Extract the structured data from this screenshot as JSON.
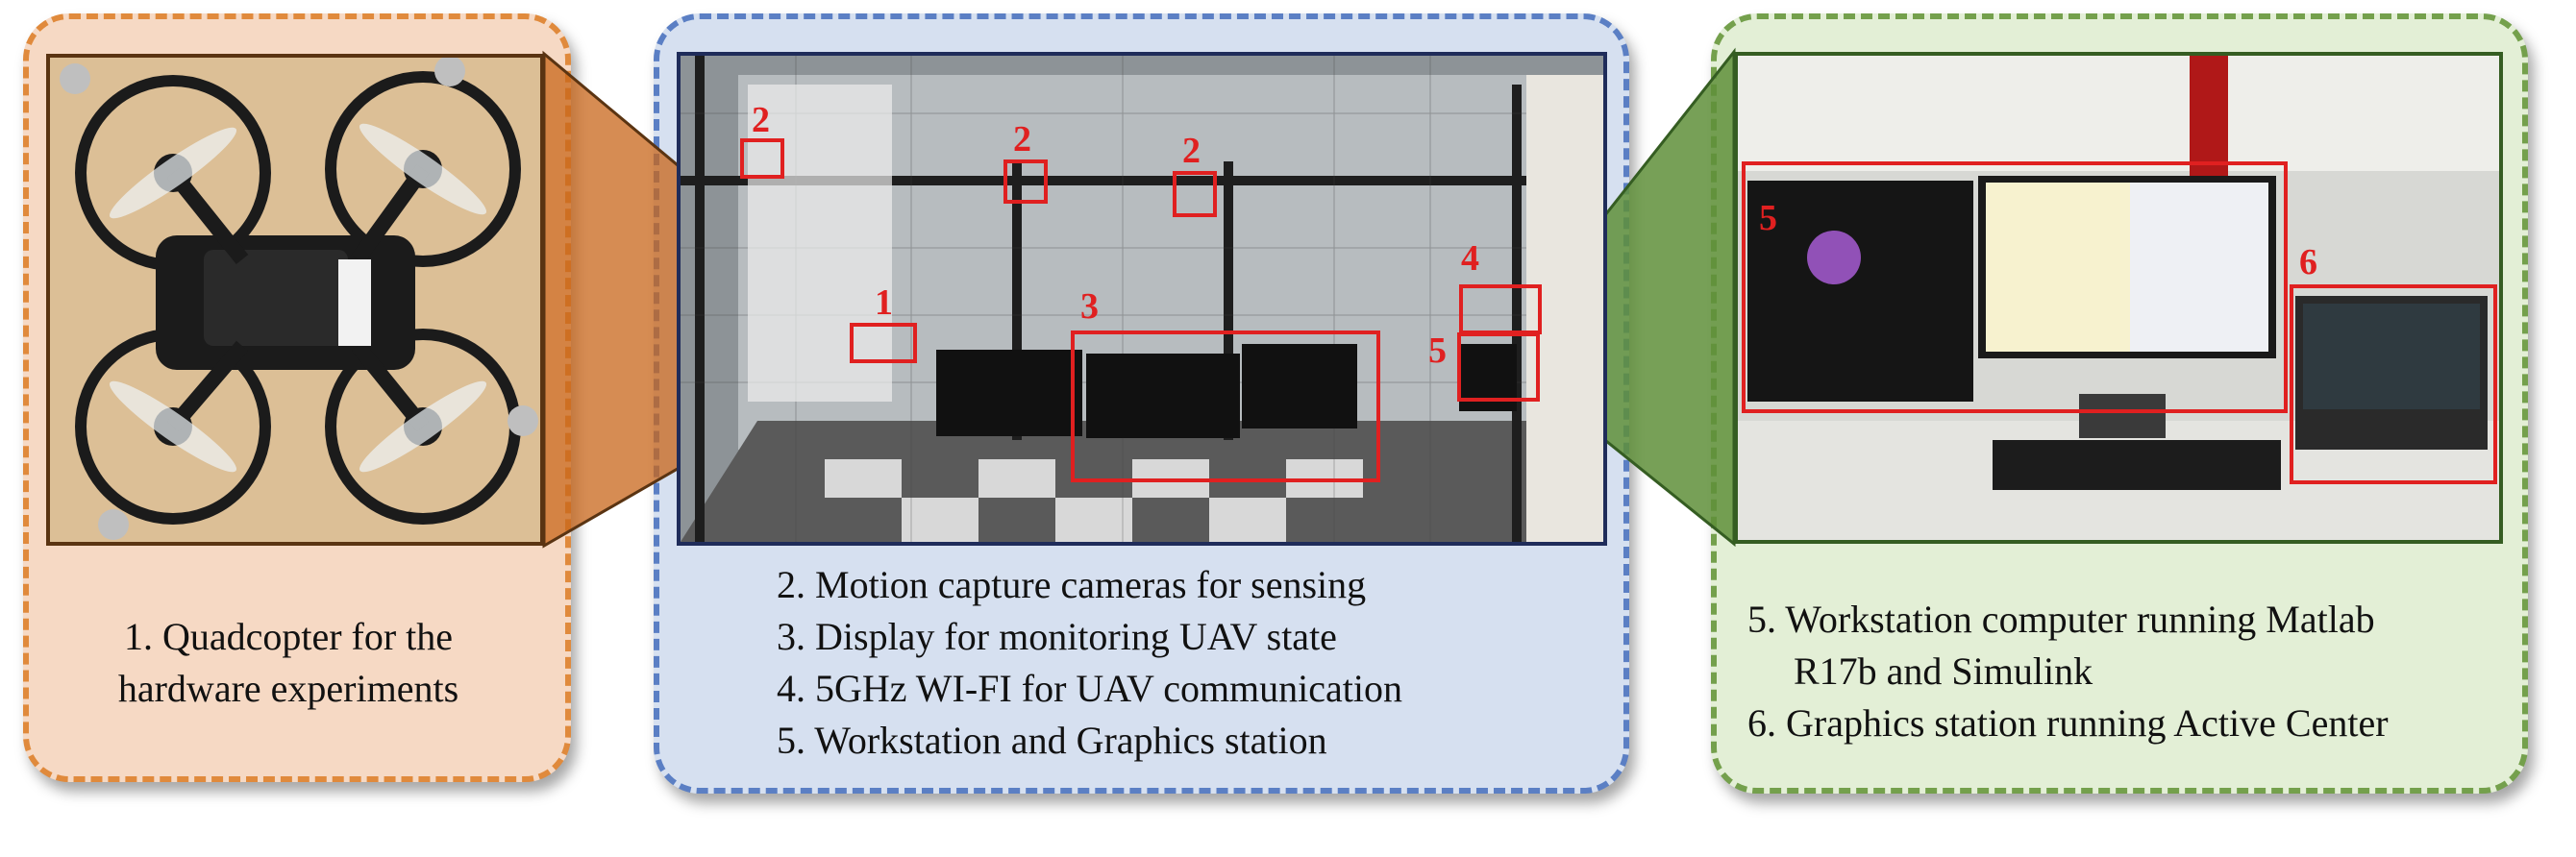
{
  "panels": {
    "left": {
      "caption_lines": [
        "1. Quadcopter for the",
        "hardware experiments"
      ]
    },
    "middle": {
      "markers": [
        "1",
        "2",
        "2",
        "2",
        "3",
        "4",
        "5"
      ],
      "caption_lines": [
        "2. Motion capture cameras for sensing",
        "3. Display for monitoring UAV state",
        "4. 5GHz WI-FI for UAV communication",
        "5. Workstation and Graphics station"
      ]
    },
    "right": {
      "markers": [
        "5",
        "6"
      ],
      "caption_lines": [
        "5. Workstation computer running Matlab",
        "R17b and Simulink",
        "6. Graphics station running Active Center"
      ]
    }
  },
  "colors": {
    "left_accent": "#e08a3c",
    "middle_accent": "#5b7fc4",
    "right_accent": "#74a04c",
    "marker": "#e02020"
  }
}
